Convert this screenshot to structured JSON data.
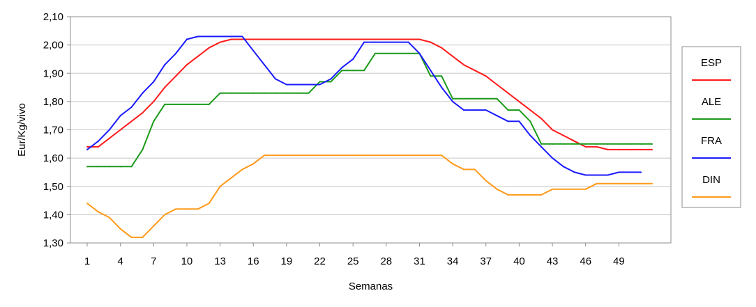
{
  "chart_data": {
    "type": "line",
    "title": "",
    "xlabel": "Semanas",
    "ylabel": "Eur/Kg/vivo",
    "xlim": [
      1,
      52
    ],
    "ylim": [
      1.3,
      2.1
    ],
    "x_ticks": [
      1,
      4,
      7,
      10,
      13,
      16,
      19,
      22,
      25,
      28,
      31,
      34,
      37,
      40,
      43,
      46,
      49
    ],
    "y_ticks": [
      1.3,
      1.4,
      1.5,
      1.6,
      1.7,
      1.8,
      1.9,
      2.0,
      2.1
    ],
    "y_tick_labels": [
      "1,30",
      "1,40",
      "1,50",
      "1,60",
      "1,70",
      "1,80",
      "1,90",
      "2,00",
      "2,10"
    ],
    "grid": "horizontal",
    "legend_position": "right",
    "series": [
      {
        "name": "ESP",
        "color": "#ff1a1a",
        "x": [
          1,
          2,
          3,
          4,
          5,
          6,
          7,
          8,
          9,
          10,
          11,
          12,
          13,
          14,
          15,
          16,
          17,
          18,
          19,
          20,
          21,
          22,
          23,
          24,
          25,
          26,
          27,
          28,
          29,
          30,
          31,
          32,
          33,
          34,
          35,
          36,
          37,
          38,
          39,
          40,
          41,
          42,
          43,
          44,
          45,
          46,
          47,
          48,
          49,
          50,
          51,
          52
        ],
        "y": [
          1.64,
          1.64,
          1.67,
          1.7,
          1.73,
          1.76,
          1.8,
          1.85,
          1.89,
          1.93,
          1.96,
          1.99,
          2.01,
          2.02,
          2.02,
          2.02,
          2.02,
          2.02,
          2.02,
          2.02,
          2.02,
          2.02,
          2.02,
          2.02,
          2.02,
          2.02,
          2.02,
          2.02,
          2.02,
          2.02,
          2.02,
          2.01,
          1.99,
          1.96,
          1.93,
          1.91,
          1.89,
          1.86,
          1.83,
          1.8,
          1.77,
          1.74,
          1.7,
          1.68,
          1.66,
          1.64,
          1.64,
          1.63,
          1.63,
          1.63,
          1.63,
          1.63
        ]
      },
      {
        "name": "ALE",
        "color": "#1a9a1a",
        "x": [
          1,
          2,
          3,
          4,
          5,
          6,
          7,
          8,
          9,
          10,
          11,
          12,
          13,
          14,
          15,
          16,
          17,
          18,
          19,
          20,
          21,
          22,
          23,
          24,
          25,
          26,
          27,
          28,
          29,
          30,
          31,
          32,
          33,
          34,
          35,
          36,
          37,
          38,
          39,
          40,
          41,
          42,
          43,
          44,
          45,
          46,
          47,
          48,
          49,
          50,
          51,
          52
        ],
        "y": [
          1.57,
          1.57,
          1.57,
          1.57,
          1.57,
          1.63,
          1.73,
          1.79,
          1.79,
          1.79,
          1.79,
          1.79,
          1.83,
          1.83,
          1.83,
          1.83,
          1.83,
          1.83,
          1.83,
          1.83,
          1.83,
          1.87,
          1.87,
          1.91,
          1.91,
          1.91,
          1.97,
          1.97,
          1.97,
          1.97,
          1.97,
          1.89,
          1.89,
          1.81,
          1.81,
          1.81,
          1.81,
          1.81,
          1.77,
          1.77,
          1.73,
          1.65,
          1.65,
          1.65,
          1.65,
          1.65,
          1.65,
          1.65,
          1.65,
          1.65,
          1.65,
          1.65
        ]
      },
      {
        "name": "FRA",
        "color": "#1a1aff",
        "x": [
          1,
          2,
          3,
          4,
          5,
          6,
          7,
          8,
          9,
          10,
          11,
          12,
          13,
          14,
          15,
          16,
          17,
          18,
          19,
          20,
          21,
          22,
          23,
          24,
          25,
          26,
          27,
          28,
          29,
          30,
          31,
          32,
          33,
          34,
          35,
          36,
          37,
          38,
          39,
          40,
          41,
          42,
          43,
          44,
          45,
          46,
          47,
          48,
          49,
          50,
          51
        ],
        "y": [
          1.63,
          1.66,
          1.7,
          1.75,
          1.78,
          1.83,
          1.87,
          1.93,
          1.97,
          2.02,
          2.03,
          2.03,
          2.03,
          2.03,
          2.03,
          1.98,
          1.93,
          1.88,
          1.86,
          1.86,
          1.86,
          1.86,
          1.88,
          1.92,
          1.95,
          2.01,
          2.01,
          2.01,
          2.01,
          2.01,
          1.97,
          1.91,
          1.85,
          1.8,
          1.77,
          1.77,
          1.77,
          1.75,
          1.73,
          1.73,
          1.68,
          1.64,
          1.6,
          1.57,
          1.55,
          1.54,
          1.54,
          1.54,
          1.55,
          1.55,
          1.55
        ]
      },
      {
        "name": "DIN",
        "color": "#ff9a1a",
        "x": [
          1,
          2,
          3,
          4,
          5,
          6,
          7,
          8,
          9,
          10,
          11,
          12,
          13,
          14,
          15,
          16,
          17,
          18,
          19,
          20,
          21,
          22,
          23,
          24,
          25,
          26,
          27,
          28,
          29,
          30,
          31,
          32,
          33,
          34,
          35,
          36,
          37,
          38,
          39,
          40,
          41,
          42,
          43,
          44,
          45,
          46,
          47,
          48,
          49,
          50,
          51,
          52
        ],
        "y": [
          1.44,
          1.41,
          1.39,
          1.35,
          1.32,
          1.32,
          1.36,
          1.4,
          1.42,
          1.42,
          1.42,
          1.44,
          1.5,
          1.53,
          1.56,
          1.58,
          1.61,
          1.61,
          1.61,
          1.61,
          1.61,
          1.61,
          1.61,
          1.61,
          1.61,
          1.61,
          1.61,
          1.61,
          1.61,
          1.61,
          1.61,
          1.61,
          1.61,
          1.58,
          1.56,
          1.56,
          1.52,
          1.49,
          1.47,
          1.47,
          1.47,
          1.47,
          1.49,
          1.49,
          1.49,
          1.49,
          1.51,
          1.51,
          1.51,
          1.51,
          1.51,
          1.51
        ]
      }
    ]
  }
}
